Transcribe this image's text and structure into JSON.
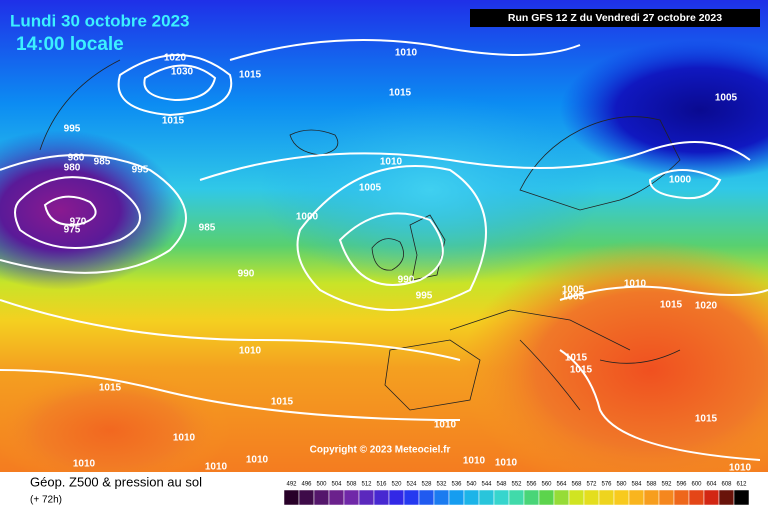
{
  "header": {
    "date": "Lundi 30 octobre 2023",
    "time": "14:00 locale",
    "run": "Run GFS 12 Z du Vendredi 27 octobre 2023"
  },
  "copyright": "Copyright © 2023 Meteociel.fr",
  "footer": {
    "title": "Géop. Z500 & pression au sol",
    "lead": "(+ 72h)"
  },
  "legend": {
    "labels": [
      492,
      496,
      500,
      504,
      508,
      512,
      516,
      520,
      524,
      528,
      532,
      536,
      540,
      544,
      548,
      552,
      556,
      560,
      564,
      568,
      572,
      576,
      580,
      584,
      588,
      592,
      596,
      600,
      604,
      608,
      612
    ]
  },
  "isobars": {
    "labels": [
      1020,
      1030,
      1015,
      1010,
      1015,
      1015,
      995,
      980,
      980,
      985,
      995,
      1010,
      1005,
      1000,
      970,
      975,
      985,
      990,
      990,
      995,
      1000,
      1005,
      1005,
      1005,
      1010,
      1015,
      1020,
      1010,
      1015,
      1015,
      1015,
      1015,
      1010,
      1010,
      1010,
      1010,
      1010,
      1010,
      1010,
      1015,
      1010
    ]
  }
}
